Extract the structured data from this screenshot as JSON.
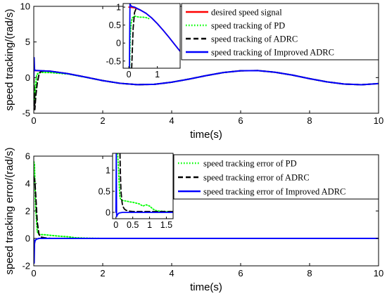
{
  "chart_data": [
    {
      "type": "line",
      "title": "",
      "xlabel": "time(s)",
      "ylabel": "speed tracking/(rad/s)",
      "xlim": [
        0,
        10
      ],
      "ylim": [
        -5,
        10
      ],
      "xticks": [
        "0",
        "2",
        "4",
        "6",
        "8",
        "10"
      ],
      "yticks": [
        "-5",
        "0",
        "5",
        "10"
      ],
      "legend": "top-right",
      "series": [
        {
          "name": "desired speed signal",
          "color": "#ff0000",
          "style": "solid",
          "x": [
            0,
            0.5,
            1,
            1.5,
            2,
            2.5,
            3,
            3.5,
            4,
            4.5,
            5,
            5.5,
            6,
            6.5,
            7,
            7.5,
            8,
            8.5,
            9,
            9.5,
            10
          ],
          "y": [
            1.0,
            0.88,
            0.54,
            0.07,
            -0.42,
            -0.8,
            -0.99,
            -0.94,
            -0.65,
            -0.21,
            0.28,
            0.71,
            0.96,
            0.98,
            0.75,
            0.35,
            -0.15,
            -0.6,
            -0.91,
            -1.0,
            -0.84
          ]
        },
        {
          "name": "speed tracking of PD",
          "color": "#00ff00",
          "style": "dotted",
          "x": [
            0,
            0.02,
            0.05,
            0.08,
            0.12,
            0.2,
            0.3,
            0.5,
            1,
            1.5,
            2,
            2.5,
            3,
            3.5,
            4,
            4.5,
            5,
            5.5,
            6,
            6.5,
            7,
            7.5,
            8,
            8.5,
            9,
            9.5,
            10
          ],
          "y": [
            0,
            -3.5,
            -1.5,
            0.3,
            0.6,
            0.75,
            0.72,
            0.7,
            0.5,
            0.05,
            -0.42,
            -0.8,
            -0.99,
            -0.94,
            -0.65,
            -0.21,
            0.28,
            0.71,
            0.96,
            0.98,
            0.75,
            0.35,
            -0.15,
            -0.6,
            -0.91,
            -1.0,
            -0.84
          ]
        },
        {
          "name": "speed tracking of ADRC",
          "color": "#000000",
          "style": "dashed",
          "x": [
            0,
            0.03,
            0.06,
            0.1,
            0.15,
            0.2,
            0.3,
            0.5,
            1,
            1.5,
            2,
            2.5,
            3,
            3.5,
            4,
            4.5,
            5,
            5.5,
            6,
            6.5,
            7,
            7.5,
            8,
            8.5,
            9,
            9.5,
            10
          ],
          "y": [
            0,
            -4.5,
            -2.5,
            -0.8,
            0.4,
            0.85,
            0.95,
            0.88,
            0.54,
            0.07,
            -0.42,
            -0.8,
            -0.99,
            -0.94,
            -0.65,
            -0.21,
            0.28,
            0.71,
            0.96,
            0.98,
            0.75,
            0.35,
            -0.15,
            -0.6,
            -0.91,
            -1.0,
            -0.84
          ]
        },
        {
          "name": "speed tracking of Improved ADRC",
          "color": "#0000ff",
          "style": "solid",
          "x": [
            0,
            0.01,
            0.02,
            0.04,
            0.06,
            0.1,
            0.5,
            1,
            1.5,
            2,
            2.5,
            3,
            3.5,
            4,
            4.5,
            5,
            5.5,
            6,
            6.5,
            7,
            7.5,
            8,
            8.5,
            9,
            9.5,
            10
          ],
          "y": [
            0,
            2.8,
            1.2,
            1.0,
            1.0,
            1.0,
            0.88,
            0.54,
            0.07,
            -0.42,
            -0.8,
            -0.99,
            -0.94,
            -0.65,
            -0.21,
            0.28,
            0.71,
            0.96,
            0.98,
            0.75,
            0.35,
            -0.15,
            -0.6,
            -0.91,
            -1.0,
            -0.84
          ]
        }
      ],
      "inset": {
        "xlim": [
          -0.2,
          1.8
        ],
        "ylim": [
          -0.7,
          1.1
        ],
        "xticks": [
          "0",
          "1"
        ],
        "yticks": [
          "-0.5",
          "0",
          "0.5",
          "1"
        ],
        "series": [
          {
            "name": "desired speed signal",
            "color": "#ff0000",
            "style": "solid",
            "x": [
              0,
              0.2,
              0.4,
              0.6,
              0.8,
              1.0,
              1.2,
              1.4,
              1.6,
              1.8
            ],
            "y": [
              1.0,
              0.98,
              0.92,
              0.83,
              0.7,
              0.54,
              0.36,
              0.17,
              -0.03,
              -0.23
            ]
          },
          {
            "name": "speed tracking of PD",
            "color": "#00ff00",
            "style": "dotted",
            "x": [
              0.03,
              0.05,
              0.08,
              0.12,
              0.2,
              0.3,
              0.4,
              0.5,
              0.6,
              0.7
            ],
            "y": [
              -0.7,
              0.2,
              0.55,
              0.7,
              0.75,
              0.73,
              0.72,
              0.72,
              0.71,
              0.68
            ]
          },
          {
            "name": "speed tracking of ADRC",
            "color": "#000000",
            "style": "dashed",
            "x": [
              0.1,
              0.15,
              0.2,
              0.25,
              0.3,
              0.4
            ],
            "y": [
              -0.7,
              0.4,
              0.85,
              0.95,
              0.96,
              0.92
            ]
          },
          {
            "name": "speed tracking of Improved ADRC",
            "color": "#0000ff",
            "style": "solid",
            "x": [
              0.02,
              0.04,
              0.06,
              0.1,
              0.2,
              0.4,
              0.6,
              0.8,
              1.0,
              1.2,
              1.4,
              1.6,
              1.8
            ],
            "y": [
              -0.7,
              1.1,
              1.05,
              1.02,
              1.0,
              0.92,
              0.83,
              0.7,
              0.54,
              0.36,
              0.17,
              -0.03,
              -0.23
            ]
          }
        ]
      }
    },
    {
      "type": "line",
      "title": "",
      "xlabel": "time(s)",
      "ylabel": "speed tracking error/(rad/s)",
      "xlim": [
        0,
        10
      ],
      "ylim": [
        -2,
        6
      ],
      "xticks": [
        "0",
        "2",
        "4",
        "6",
        "8",
        "10"
      ],
      "yticks": [
        "-2",
        "0",
        "2",
        "4",
        "6"
      ],
      "legend": "top-right",
      "series": [
        {
          "name": "speed tracking error of PD",
          "color": "#00ff00",
          "style": "dotted",
          "x": [
            0,
            0.02,
            0.05,
            0.1,
            0.15,
            0.2,
            0.3,
            0.5,
            0.8,
            1.0,
            1.2,
            1.5,
            2,
            10
          ],
          "y": [
            5.6,
            5.4,
            2.5,
            0.5,
            0.3,
            0.28,
            0.27,
            0.22,
            0.15,
            0.12,
            0.05,
            0.02,
            0.0,
            0.0
          ]
        },
        {
          "name": "speed tracking error of ADRC",
          "color": "#000000",
          "style": "dashed",
          "x": [
            0,
            0.03,
            0.06,
            0.1,
            0.15,
            0.2,
            0.3,
            0.5,
            1,
            10
          ],
          "y": [
            4.5,
            4.2,
            3.0,
            1.2,
            0.3,
            0.1,
            0.05,
            0.0,
            0.0,
            0.0
          ]
        },
        {
          "name": "speed tracking error of Improved ADRC",
          "color": "#0000ff",
          "style": "solid",
          "x": [
            0,
            0.01,
            0.02,
            0.04,
            0.08,
            0.15,
            0.3,
            1,
            10
          ],
          "y": [
            0,
            -1.8,
            -0.4,
            -0.15,
            -0.05,
            0.0,
            0.0,
            0.0,
            0.0
          ]
        }
      ],
      "inset": {
        "xlim": [
          -0.1,
          1.7
        ],
        "ylim": [
          -0.15,
          1.4
        ],
        "xticks": [
          "0",
          "0.5",
          "1",
          "1.5"
        ],
        "yticks": [
          "0",
          "0.5",
          "1"
        ],
        "series": [
          {
            "name": "speed tracking error of PD",
            "color": "#00ff00",
            "style": "dotted",
            "x": [
              0.05,
              0.08,
              0.1,
              0.12,
              0.15,
              0.2,
              0.3,
              0.4,
              0.5,
              0.6,
              0.7,
              0.8,
              0.9,
              1.0,
              1.1,
              1.2,
              1.3,
              1.5,
              1.7
            ],
            "y": [
              1.4,
              1.0,
              0.6,
              0.35,
              0.3,
              0.28,
              0.27,
              0.25,
              0.24,
              0.22,
              0.2,
              0.15,
              0.18,
              0.15,
              0.08,
              0.04,
              0.03,
              0.02,
              0.02
            ]
          },
          {
            "name": "speed tracking error of ADRC",
            "color": "#000000",
            "style": "dashed",
            "x": [
              0.12,
              0.13,
              0.15,
              0.18,
              0.2,
              0.25,
              0.3,
              0.4,
              0.5,
              0.7,
              1.0,
              1.7
            ],
            "y": [
              1.4,
              1.0,
              0.5,
              0.25,
              0.15,
              0.08,
              0.05,
              0.03,
              0.02,
              0.02,
              0.02,
              0.02
            ]
          },
          {
            "name": "speed tracking error of Improved ADRC",
            "color": "#0000ff",
            "style": "solid",
            "x": [
              0,
              0.01,
              0.02,
              0.03,
              0.05,
              0.08,
              0.12,
              0.2,
              0.4,
              1.0,
              1.7
            ],
            "y": [
              0,
              1.4,
              -0.1,
              -0.08,
              -0.05,
              -0.02,
              -0.01,
              0.0,
              0.0,
              0.0,
              0.0
            ]
          }
        ]
      }
    }
  ]
}
